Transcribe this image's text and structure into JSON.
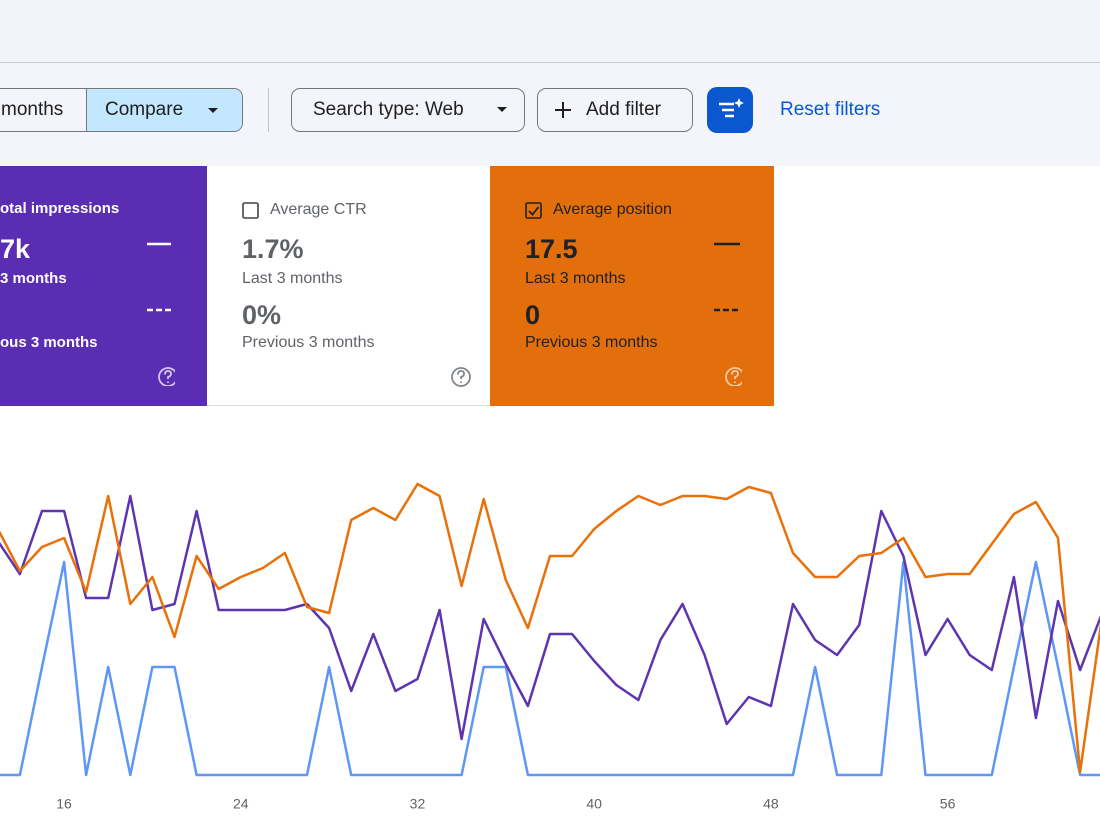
{
  "toolbar": {
    "date_range": "months",
    "compare": "Compare",
    "search_type": "Search type: Web",
    "add_filter": "Add filter",
    "reset_filters": "Reset filters"
  },
  "cards": [
    {
      "label": "otal impressions",
      "value": "7k",
      "current_period": "3 months",
      "previous_period": "ous 3 months"
    },
    {
      "label": "Average CTR",
      "value": "1.7%",
      "current_period": "Last 3 months",
      "previous_value": "0%",
      "previous_period": "Previous 3 months"
    },
    {
      "label": "Average position",
      "value": "17.5",
      "current_period": "Last 3 months",
      "previous_value": "0",
      "previous_period": "Previous 3 months"
    }
  ],
  "chart_data": {
    "type": "line",
    "x": [
      13,
      14,
      15,
      16,
      17,
      18,
      19,
      20,
      21,
      22,
      23,
      24,
      25,
      26,
      27,
      28,
      29,
      30,
      31,
      32,
      33,
      34,
      35,
      36,
      37,
      38,
      39,
      40,
      41,
      42,
      43,
      44,
      45,
      46,
      47,
      48,
      49,
      50,
      51,
      52,
      53,
      54,
      55,
      56,
      57,
      58,
      59,
      60,
      61,
      62,
      63
    ],
    "xlim": [
      13.1,
      62.9
    ],
    "xticks": [
      16,
      24,
      32,
      40,
      48,
      56
    ],
    "ylim": [
      0,
      100
    ],
    "grid": false,
    "series": [
      {
        "color": "#5e97f6",
        "values": [
          0,
          0,
          36,
          71,
          0,
          36,
          0,
          36,
          36,
          0,
          0,
          0,
          0,
          0,
          0,
          36,
          0,
          0,
          0,
          0,
          0,
          0,
          36,
          36,
          0,
          0,
          0,
          0,
          0,
          0,
          0,
          0,
          0,
          0,
          0,
          0,
          0,
          36,
          0,
          0,
          0,
          71,
          0,
          0,
          0,
          0,
          36,
          71,
          36,
          0,
          0
        ]
      },
      {
        "color": "#5e35b1",
        "values": [
          78,
          67,
          88,
          88,
          59,
          59,
          93,
          55,
          57,
          88,
          55,
          55,
          55,
          55,
          57,
          49,
          28,
          47,
          28,
          32,
          55,
          12,
          52,
          37,
          23,
          47,
          47,
          38,
          30,
          25,
          45,
          57,
          40,
          17,
          26,
          23,
          57,
          45,
          40,
          50,
          88,
          73,
          40,
          52,
          40,
          35,
          66,
          19,
          58,
          35,
          54
        ]
      },
      {
        "color": "#e8710a",
        "values": [
          82,
          68,
          76,
          79,
          61,
          93,
          57,
          66,
          46,
          73,
          62,
          66,
          69,
          74,
          56,
          54,
          85,
          89,
          85,
          97,
          93,
          63,
          92,
          65,
          49,
          73,
          73,
          82,
          88,
          93,
          90,
          93,
          93,
          92,
          96,
          94,
          74,
          66,
          66,
          73,
          74,
          79,
          66,
          67,
          67,
          77,
          87,
          91,
          79,
          1,
          53
        ]
      }
    ]
  }
}
